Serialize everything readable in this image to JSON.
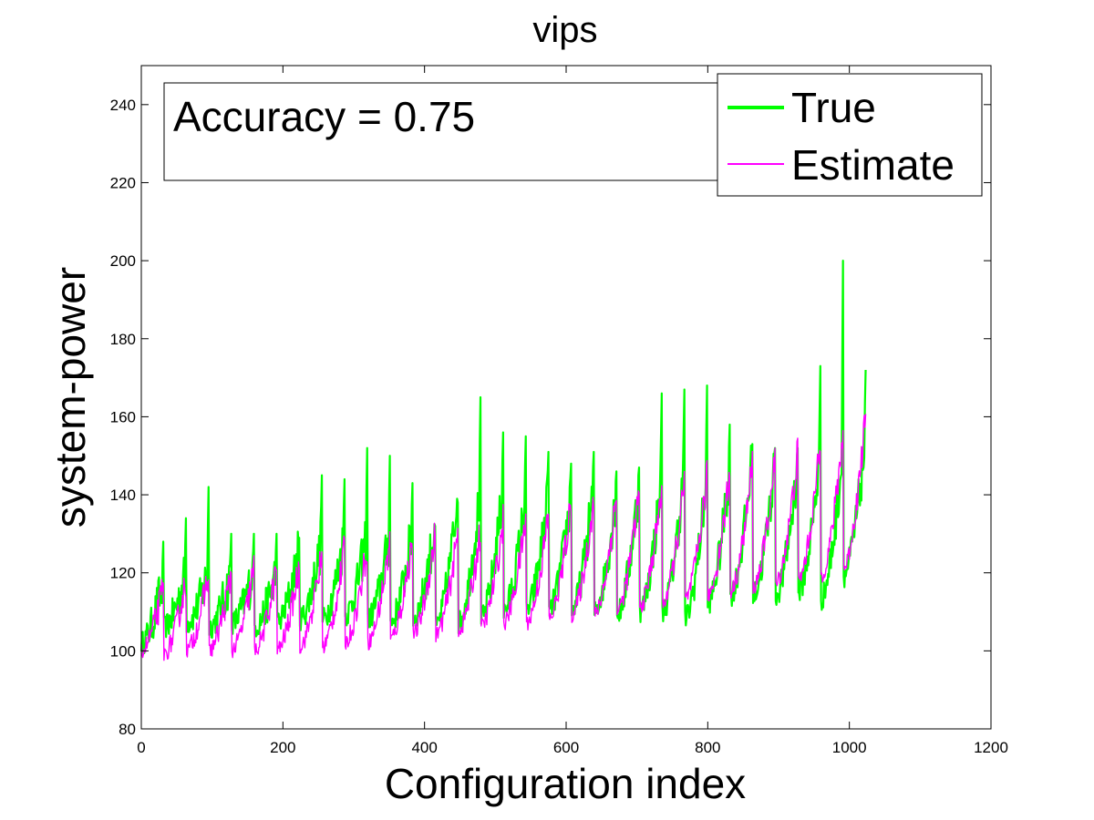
{
  "chart_data": {
    "type": "line",
    "title": "vips",
    "xlabel": "Configuration index",
    "ylabel": "system-power",
    "xlim": [
      0,
      1200
    ],
    "ylim": [
      80,
      250
    ],
    "xticks": [
      0,
      200,
      400,
      600,
      800,
      1000,
      1200
    ],
    "yticks": [
      80,
      100,
      120,
      140,
      160,
      180,
      200,
      220,
      240
    ],
    "grid": false,
    "legend_position": "top-right",
    "annotation": "Accuracy = 0.75",
    "colors": {
      "true": "#00ff00",
      "estimate": "#ff00ff"
    },
    "n_points": 1024,
    "segment_length": 32,
    "series": [
      {
        "name": "True",
        "color": "#00ff00",
        "segment_base": [
          102,
          106,
          107,
          106,
          107,
          106,
          107,
          108,
          108,
          109,
          108,
          107,
          108,
          106,
          107,
          108,
          110,
          110,
          110,
          110,
          110,
          109,
          110,
          110,
          108,
          112,
          114,
          114,
          114,
          115,
          113,
          119
        ],
        "segment_end": [
          118,
          120,
          121,
          120,
          121,
          121,
          126,
          129,
          130,
          131,
          130,
          132,
          133,
          140,
          142,
          142,
          140,
          141,
          141,
          143,
          141,
          143,
          145,
          147,
          146,
          147,
          150,
          149,
          148,
          151,
          152,
          155
        ],
        "segment_peak": [
          128,
          134,
          142,
          130,
          130,
          130,
          129,
          145,
          144,
          152,
          150,
          143,
          132,
          138,
          165,
          156,
          155,
          151,
          148,
          151,
          146,
          147,
          166,
          167,
          168,
          158,
          153,
          152,
          152,
          173,
          200,
          172
        ]
      },
      {
        "name": "Estimate",
        "color": "#ff00ff",
        "segment_base": [
          100,
          99,
          100,
          100,
          100,
          100,
          100,
          101,
          101,
          102,
          102,
          103,
          104,
          104,
          105,
          106,
          107,
          107,
          108,
          109,
          109,
          110,
          111,
          112,
          113,
          114,
          115,
          116,
          117,
          118,
          119,
          121
        ],
        "segment_end": [
          116,
          118,
          120,
          120,
          121,
          121,
          122,
          125,
          126,
          127,
          128,
          129,
          130,
          130,
          131,
          133,
          134,
          135,
          138,
          139,
          140,
          141,
          142,
          143,
          145,
          146,
          148,
          149,
          151,
          153,
          156,
          161
        ]
      }
    ]
  }
}
